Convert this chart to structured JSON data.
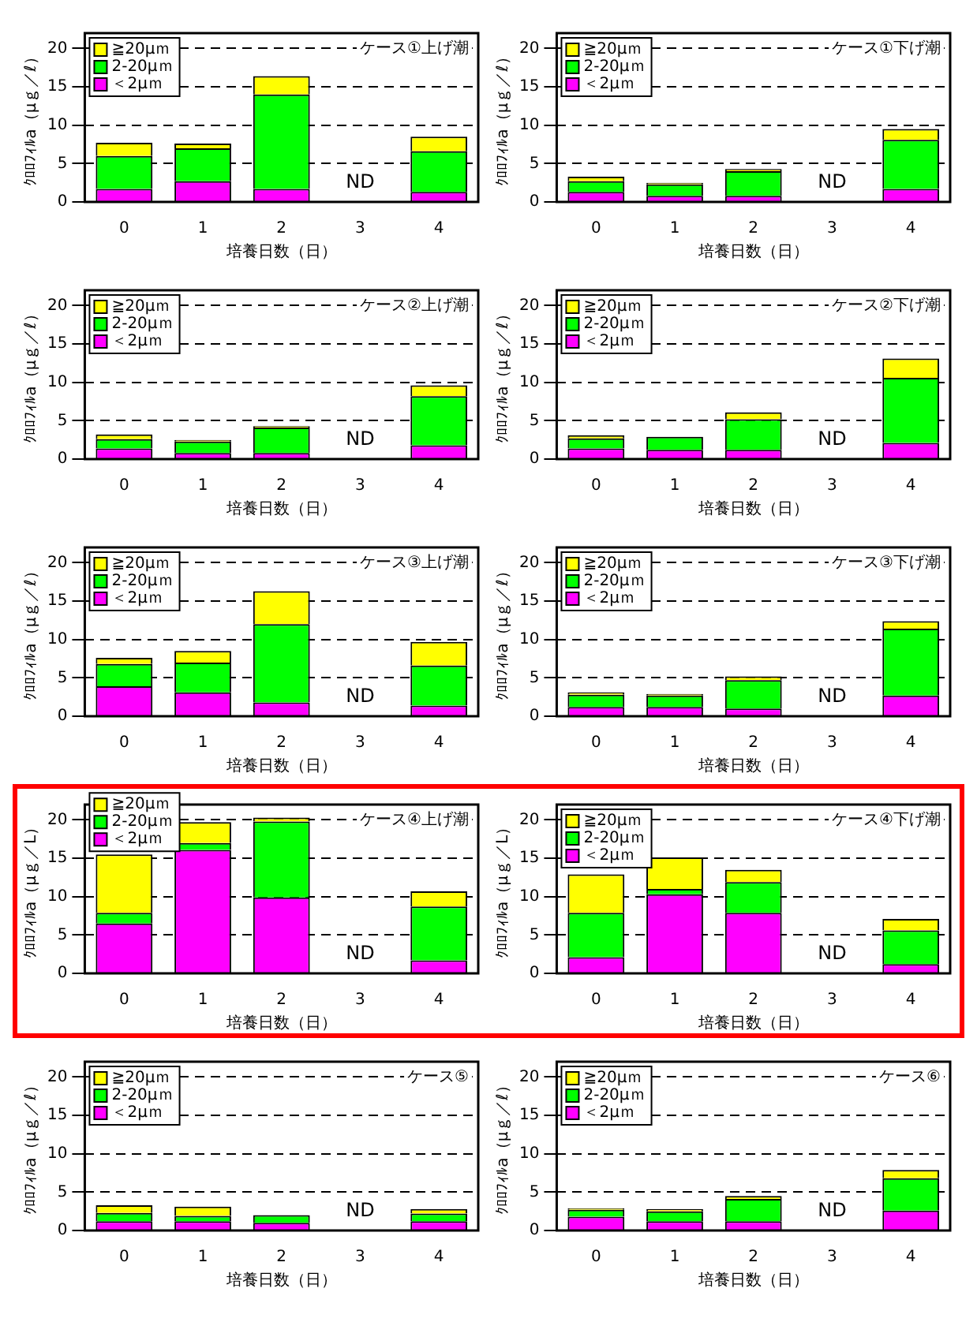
{
  "chart_data": [
    {
      "type": "bar",
      "stacked": true,
      "categories": [
        "0",
        "1",
        "2",
        "3",
        "4"
      ],
      "xlabel": "培養日数（日）",
      "ylabel": "ｸﾛﾛﾌｨﾙa（μｇ／ℓ）",
      "ylim": [
        0,
        22
      ],
      "yticks": [
        0,
        5,
        10,
        15,
        20
      ],
      "grid": "y",
      "legend": "top left",
      "annotations": [
        "ケース①上げ潮",
        "ND"
      ],
      "series": [
        {
          "name": "＜2μｍ",
          "color": "#ff00ff",
          "values": [
            1.7,
            2.7,
            1.7,
            null,
            1.3
          ]
        },
        {
          "name": "2-20μｍ",
          "color": "#00ff00",
          "values": [
            4.3,
            4.3,
            12.3,
            null,
            5.3
          ]
        },
        {
          "name": "≧20μｍ",
          "color": "#ffff00",
          "values": [
            1.7,
            0.6,
            2.4,
            null,
            1.9
          ]
        }
      ]
    },
    {
      "type": "bar",
      "stacked": true,
      "categories": [
        "0",
        "1",
        "2",
        "3",
        "4"
      ],
      "xlabel": "培養日数（日）",
      "ylabel": "ｸﾛﾛﾌｨﾙa（μｇ／ℓ）",
      "ylim": [
        0,
        22
      ],
      "yticks": [
        0,
        5,
        10,
        15,
        20
      ],
      "grid": "y",
      "legend": "top left",
      "annotations": [
        "ケース①下げ潮",
        "ND"
      ],
      "series": [
        {
          "name": "＜2μｍ",
          "color": "#ff00ff",
          "values": [
            1.3,
            0.8,
            0.8,
            null,
            1.7
          ]
        },
        {
          "name": "2-20μｍ",
          "color": "#00ff00",
          "values": [
            1.4,
            1.5,
            3.2,
            null,
            6.4
          ]
        },
        {
          "name": "≧20μｍ",
          "color": "#ffff00",
          "values": [
            0.6,
            0.2,
            0.3,
            null,
            1.4
          ]
        }
      ]
    },
    {
      "type": "bar",
      "stacked": true,
      "categories": [
        "0",
        "1",
        "2",
        "3",
        "4"
      ],
      "xlabel": "培養日数（日）",
      "ylabel": "ｸﾛﾛﾌｨﾙa（μｇ／ℓ）",
      "ylim": [
        0,
        22
      ],
      "yticks": [
        0,
        5,
        10,
        15,
        20
      ],
      "grid": "y",
      "legend": "top left",
      "annotations": [
        "ケース②上げ潮",
        "ND"
      ],
      "series": [
        {
          "name": "＜2μｍ",
          "color": "#ff00ff",
          "values": [
            1.4,
            0.8,
            0.8,
            null,
            1.8
          ]
        },
        {
          "name": "2-20μｍ",
          "color": "#00ff00",
          "values": [
            1.2,
            1.5,
            3.3,
            null,
            6.4
          ]
        },
        {
          "name": "≧20μｍ",
          "color": "#ffff00",
          "values": [
            0.6,
            0.2,
            0.2,
            null,
            1.4
          ]
        }
      ]
    },
    {
      "type": "bar",
      "stacked": true,
      "categories": [
        "0",
        "1",
        "2",
        "3",
        "4"
      ],
      "xlabel": "培養日数（日）",
      "ylabel": "ｸﾛﾛﾌｨﾙa（μｇ／ℓ）",
      "ylim": [
        0,
        22
      ],
      "yticks": [
        0,
        5,
        10,
        15,
        20
      ],
      "grid": "y",
      "legend": "top left",
      "annotations": [
        "ケース②下げ潮",
        "ND"
      ],
      "series": [
        {
          "name": "＜2μｍ",
          "color": "#ff00ff",
          "values": [
            1.4,
            1.2,
            1.2,
            null,
            2.1
          ]
        },
        {
          "name": "2-20μｍ",
          "color": "#00ff00",
          "values": [
            1.3,
            1.7,
            4.0,
            null,
            8.5
          ]
        },
        {
          "name": "≧20μｍ",
          "color": "#ffff00",
          "values": [
            0.4,
            null,
            0.9,
            null,
            2.5
          ]
        }
      ]
    },
    {
      "type": "bar",
      "stacked": true,
      "categories": [
        "0",
        "1",
        "2",
        "3",
        "4"
      ],
      "xlabel": "培養日数（日）",
      "ylabel": "ｸﾛﾛﾌｨﾙa（μｇ／ℓ）",
      "ylim": [
        0,
        22
      ],
      "yticks": [
        0,
        5,
        10,
        15,
        20
      ],
      "grid": "y",
      "legend": "top left",
      "annotations": [
        "ケース③上げ潮",
        "ND"
      ],
      "series": [
        {
          "name": "＜2μｍ",
          "color": "#ff00ff",
          "values": [
            3.9,
            3.1,
            1.8,
            null,
            1.4
          ]
        },
        {
          "name": "2-20μｍ",
          "color": "#00ff00",
          "values": [
            2.9,
            3.9,
            10.2,
            null,
            5.2
          ]
        },
        {
          "name": "≧20μｍ",
          "color": "#ffff00",
          "values": [
            0.8,
            1.5,
            4.3,
            null,
            3.1
          ]
        }
      ]
    },
    {
      "type": "bar",
      "stacked": true,
      "categories": [
        "0",
        "1",
        "2",
        "3",
        "4"
      ],
      "xlabel": "培養日数（日）",
      "ylabel": "ｸﾛﾛﾌｨﾙa（μｇ／ℓ）",
      "ylim": [
        0,
        22
      ],
      "yticks": [
        0,
        5,
        10,
        15,
        20
      ],
      "grid": "y",
      "legend": "top left",
      "annotations": [
        "ケース③下げ潮",
        "ND"
      ],
      "series": [
        {
          "name": "＜2μｍ",
          "color": "#ff00ff",
          "values": [
            1.2,
            1.2,
            1.0,
            null,
            2.7
          ]
        },
        {
          "name": "2-20μｍ",
          "color": "#00ff00",
          "values": [
            1.6,
            1.5,
            3.7,
            null,
            8.7
          ]
        },
        {
          "name": "≧20μｍ",
          "color": "#ffff00",
          "values": [
            0.3,
            0.2,
            0.5,
            null,
            1.0
          ]
        }
      ]
    },
    {
      "type": "bar",
      "stacked": true,
      "categories": [
        "0",
        "1",
        "2",
        "3",
        "4"
      ],
      "xlabel": "培養日数（日）",
      "ylabel": "ｸﾛﾛﾌｨﾙa（μｇ／L）",
      "ylim": [
        0,
        22
      ],
      "yticks": [
        0,
        5,
        10,
        15,
        20
      ],
      "grid": "y",
      "legend": "top left",
      "annotations": [
        "ケース④上げ潮",
        "ND"
      ],
      "series": [
        {
          "name": "＜2μｍ",
          "color": "#ff00ff",
          "values": [
            6.5,
            16.1,
            9.9,
            null,
            1.7
          ]
        },
        {
          "name": "2-20μｍ",
          "color": "#00ff00",
          "values": [
            1.4,
            0.9,
            9.9,
            null,
            7.0
          ]
        },
        {
          "name": "≧20μｍ",
          "color": "#ffff00",
          "values": [
            7.6,
            2.7,
            0.5,
            null,
            2.0
          ]
        }
      ]
    },
    {
      "type": "bar",
      "stacked": true,
      "categories": [
        "0",
        "1",
        "2",
        "3",
        "4"
      ],
      "xlabel": "培養日数（日）",
      "ylabel": "ｸﾛﾛﾌｨﾙa（μｇ／L）",
      "ylim": [
        0,
        22
      ],
      "yticks": [
        0,
        5,
        10,
        15,
        20
      ],
      "grid": "y",
      "legend": "top left",
      "annotations": [
        "ケース④下げ潮",
        "ND"
      ],
      "series": [
        {
          "name": "＜2μｍ",
          "color": "#ff00ff",
          "values": [
            2.1,
            10.3,
            7.9,
            null,
            1.2
          ]
        },
        {
          "name": "2-20μｍ",
          "color": "#00ff00",
          "values": [
            5.8,
            0.7,
            4.0,
            null,
            4.4
          ]
        },
        {
          "name": "≧20μｍ",
          "color": "#ffff00",
          "values": [
            5.0,
            4.1,
            1.6,
            null,
            1.5
          ]
        }
      ]
    },
    {
      "type": "bar",
      "stacked": true,
      "categories": [
        "0",
        "1",
        "2",
        "3",
        "4"
      ],
      "xlabel": "培養日数（日）",
      "ylabel": "ｸﾛﾛﾌｨﾙa（μｇ／ℓ）",
      "ylim": [
        0,
        22
      ],
      "yticks": [
        0,
        5,
        10,
        15,
        20
      ],
      "grid": "y",
      "legend": "top left",
      "annotations": [
        "ケース⑤",
        "ND"
      ],
      "series": [
        {
          "name": "＜2μｍ",
          "color": "#ff00ff",
          "values": [
            1.2,
            1.2,
            1.0,
            null,
            1.2
          ]
        },
        {
          "name": "2-20μｍ",
          "color": "#00ff00",
          "values": [
            1.1,
            0.7,
            1.0,
            null,
            1.0
          ]
        },
        {
          "name": "≧20μｍ",
          "color": "#ffff00",
          "values": [
            1.0,
            1.2,
            0,
            null,
            0.6
          ]
        }
      ]
    },
    {
      "type": "bar",
      "stacked": true,
      "categories": [
        "0",
        "1",
        "2",
        "3",
        "4"
      ],
      "xlabel": "培養日数（日）",
      "ylabel": "ｸﾛﾛﾌｨﾙa（μｇ／ℓ）",
      "ylim": [
        0,
        22
      ],
      "yticks": [
        0,
        5,
        10,
        15,
        20
      ],
      "grid": "y",
      "legend": "top left",
      "annotations": [
        "ケース⑥",
        "ND"
      ],
      "series": [
        {
          "name": "＜2μｍ",
          "color": "#ff00ff",
          "values": [
            1.8,
            1.2,
            1.2,
            null,
            2.6
          ]
        },
        {
          "name": "2-20μｍ",
          "color": "#00ff00",
          "values": [
            0.9,
            1.3,
            2.9,
            null,
            4.2
          ]
        },
        {
          "name": "≧20μｍ",
          "color": "#ffff00",
          "values": [
            0.2,
            0.3,
            0.4,
            null,
            1.1
          ]
        }
      ]
    }
  ]
}
